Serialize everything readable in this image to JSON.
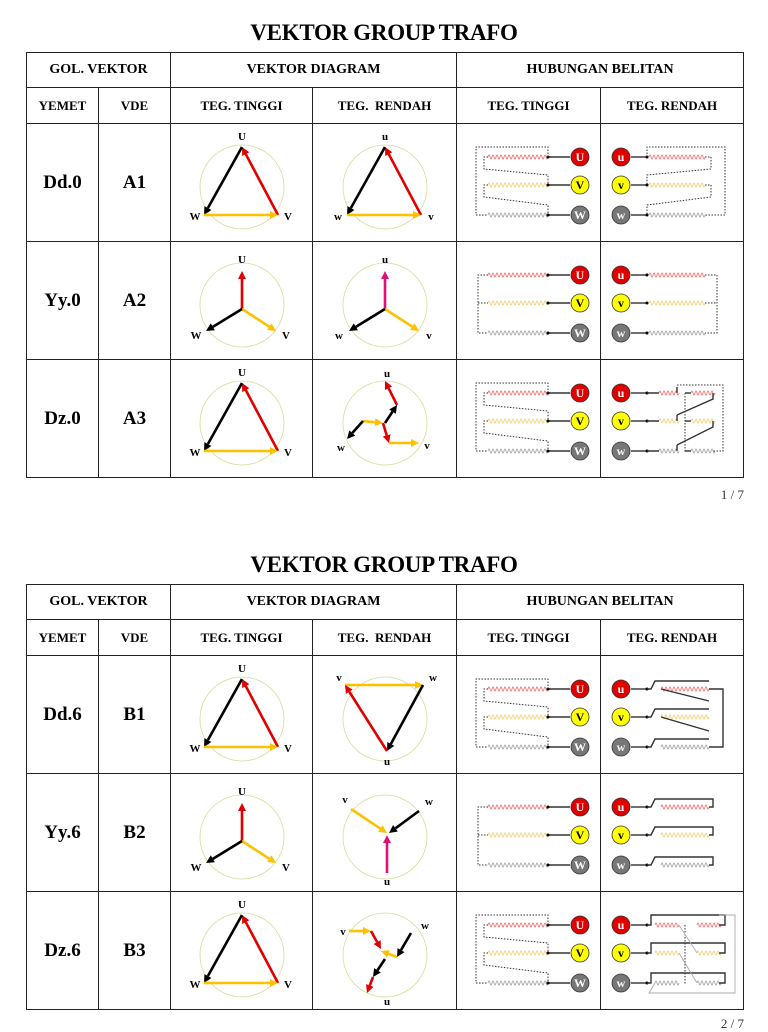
{
  "pages": [
    {
      "title": "VEKTOR GROUP TRAFO",
      "headers": {
        "gol_vektor": "GOL. VEKTOR",
        "vektor_diagram": "VEKTOR DIAGRAM",
        "hubungan_belitan": "HUBUNGAN BELITAN",
        "yemet": "YEMET",
        "vde": "VDE",
        "teg_tinggi": "TEG. TINGGI",
        "teg_rendah": "TEG.  RENDAH",
        "teg_tinggi_2": "TEG. TINGGI",
        "teg_rendah_2": "TEG. RENDAH"
      },
      "rows": [
        {
          "yemet": "Dd.0",
          "vde": "A1"
        },
        {
          "yemet": "Yy.0",
          "vde": "A2"
        },
        {
          "yemet": "Dz.0",
          "vde": "A3"
        }
      ],
      "page_number": "1 / 7"
    },
    {
      "title": "VEKTOR GROUP TRAFO",
      "headers": {
        "gol_vektor": "GOL. VEKTOR",
        "vektor_diagram": "VEKTOR DIAGRAM",
        "hubungan_belitan": "HUBUNGAN BELITAN",
        "yemet": "YEMET",
        "vde": "VDE",
        "teg_tinggi": "TEG. TINGGI",
        "teg_rendah": "TEG.  RENDAH",
        "teg_tinggi_2": "TEG. TINGGI",
        "teg_rendah_2": "TEG. RENDAH"
      },
      "rows": [
        {
          "yemet": "Dd.6",
          "vde": "B1"
        },
        {
          "yemet": "Yy.6",
          "vde": "B2"
        },
        {
          "yemet": "Dz.6",
          "vde": "B3"
        }
      ],
      "page_number": "2 / 7"
    }
  ],
  "labels": {
    "hv": [
      "U",
      "V",
      "W"
    ],
    "lv": [
      "u",
      "v",
      "w"
    ]
  },
  "colors": {
    "red": "#e00000",
    "yellow": "#ffc000",
    "terminal_yellow": "#ffff00",
    "grey": "#777777",
    "magenta": "#e0107a",
    "black": "#000000"
  }
}
